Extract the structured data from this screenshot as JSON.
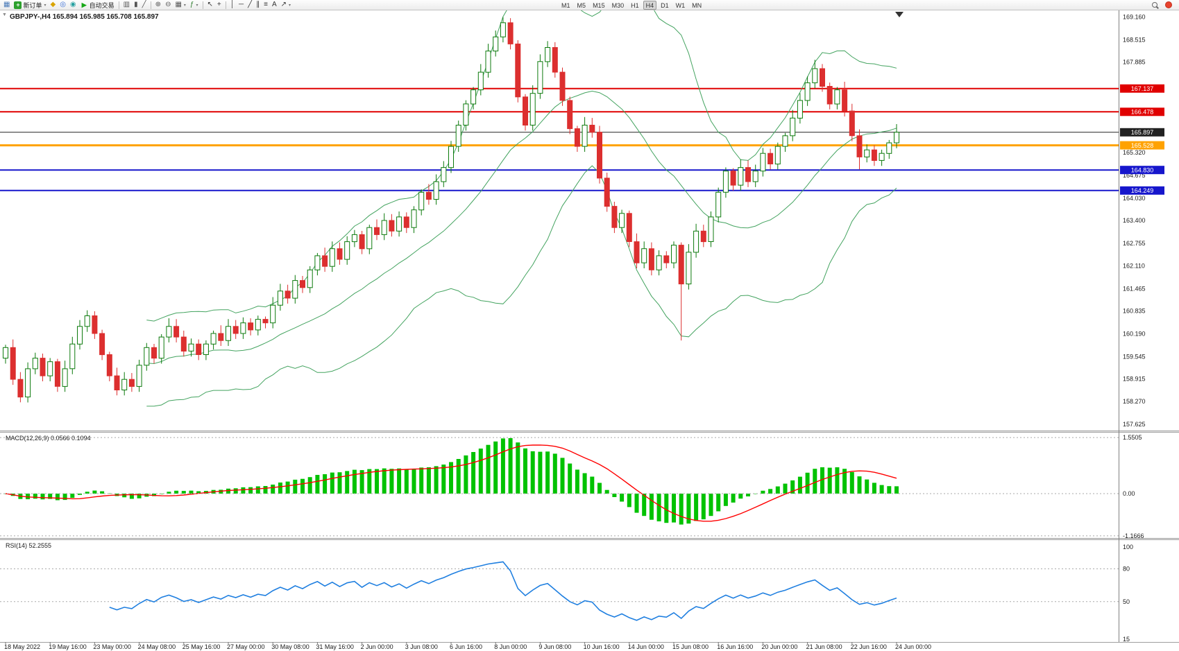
{
  "toolbar": {
    "items": [
      {
        "type": "icon",
        "name": "new-chart",
        "glyph": "▦",
        "color": "#4a7ab8"
      },
      {
        "type": "labeled",
        "name": "new-order",
        "label": "新订单",
        "icon_glyph": "+",
        "icon_bg": "#2ca02c",
        "dropdown": true
      },
      {
        "type": "icon",
        "name": "history-center",
        "glyph": "◆",
        "color": "#d9a400"
      },
      {
        "type": "icon",
        "name": "market-watch",
        "glyph": "◎",
        "color": "#3a6fd8"
      },
      {
        "type": "icon",
        "name": "data-window",
        "glyph": "◉",
        "color": "#26a0a0"
      },
      {
        "type": "labeled",
        "name": "autotrading",
        "label": "自动交易",
        "icon_glyph": "▶",
        "icon_color": "#18a818"
      },
      {
        "type": "sep"
      },
      {
        "type": "icon",
        "name": "bar-chart",
        "glyph": "▥",
        "color": "#555555"
      },
      {
        "type": "icon",
        "name": "candlestick-chart",
        "glyph": "▮",
        "color": "#555555"
      },
      {
        "type": "icon",
        "name": "line-chart",
        "glyph": "╱",
        "color": "#555555"
      },
      {
        "type": "sep"
      },
      {
        "type": "icon",
        "name": "zoom-in",
        "glyph": "⊕",
        "color": "#555555"
      },
      {
        "type": "icon",
        "name": "zoom-out",
        "glyph": "⊖",
        "color": "#555555"
      },
      {
        "type": "icon",
        "name": "tile-windows",
        "glyph": "▦",
        "color": "#555555",
        "dropdown": true
      },
      {
        "type": "icon",
        "name": "indicators",
        "glyph": "ƒ",
        "color": "#2d7d2d",
        "dropdown": true
      },
      {
        "type": "sep"
      },
      {
        "type": "icon",
        "name": "cursor",
        "glyph": "↖",
        "color": "#333333"
      },
      {
        "type": "icon",
        "name": "crosshair",
        "glyph": "+",
        "color": "#333333"
      },
      {
        "type": "sep"
      },
      {
        "type": "icon",
        "name": "vertical-line",
        "glyph": "│",
        "color": "#333333"
      },
      {
        "type": "icon",
        "name": "horizontal-line",
        "glyph": "─",
        "color": "#333333"
      },
      {
        "type": "icon",
        "name": "trendline",
        "glyph": "╱",
        "color": "#333333"
      },
      {
        "type": "icon",
        "name": "equidistant-channel",
        "glyph": "∥",
        "color": "#333333"
      },
      {
        "type": "icon",
        "name": "fibonacci",
        "glyph": "≡",
        "color": "#333333"
      },
      {
        "type": "icon",
        "name": "text-label",
        "glyph": "A",
        "color": "#333333"
      },
      {
        "type": "icon",
        "name": "arrow-objects",
        "glyph": "↗",
        "color": "#333333",
        "dropdown": true
      },
      {
        "type": "tf-group"
      },
      {
        "type": "spacer"
      },
      {
        "type": "search"
      },
      {
        "type": "notification"
      }
    ],
    "timeframes": [
      "M1",
      "M5",
      "M15",
      "M30",
      "H1",
      "H4",
      "D1",
      "W1",
      "MN"
    ],
    "active_timeframe": "H4"
  },
  "chart": {
    "title": "GBPJPY-,H4 165.894 165.985 165.708 165.897",
    "symbol": "GBPJPY-",
    "period": "H4",
    "ohlc": {
      "open": "165.894",
      "high": "165.985",
      "low": "165.708",
      "close": "165.897"
    },
    "levels": [
      {
        "price": 167.137,
        "label": "167.137",
        "color": "#e00000",
        "width": 2
      },
      {
        "price": 166.478,
        "label": "166.478",
        "color": "#e00000",
        "width": 2
      },
      {
        "price": 165.897,
        "label": "165.897",
        "color": "#222222",
        "width": 1
      },
      {
        "price": 165.528,
        "label": "165.528",
        "color": "#ffa200",
        "width": 3
      },
      {
        "price": 164.83,
        "label": "164.830",
        "color": "#1616cc",
        "width": 2
      },
      {
        "price": 164.249,
        "label": "164.249",
        "color": "#1616cc",
        "width": 2
      }
    ],
    "y_ticks": [
      169.16,
      168.515,
      167.885,
      165.32,
      164.675,
      164.03,
      163.4,
      162.755,
      162.11,
      161.465,
      160.835,
      160.19,
      159.545,
      158.915,
      158.27,
      157.625
    ]
  },
  "chart_data": {
    "type": "candlestick",
    "symbol": "GBPJPY-",
    "timeframe": "H4",
    "y_axis": {
      "price_top": 169.35,
      "price_bottom": 157.45
    },
    "first_open": 159.5,
    "closes": [
      159.8,
      158.9,
      158.4,
      159.2,
      159.5,
      159.0,
      159.4,
      158.7,
      159.2,
      159.9,
      160.4,
      160.7,
      160.2,
      159.6,
      159.0,
      158.6,
      158.9,
      158.7,
      159.3,
      159.8,
      159.5,
      160.1,
      160.4,
      160.1,
      159.7,
      159.9,
      159.6,
      159.9,
      160.2,
      160.0,
      160.4,
      160.2,
      160.5,
      160.3,
      160.6,
      160.5,
      161.0,
      161.4,
      161.2,
      161.7,
      161.5,
      162.0,
      162.4,
      162.1,
      162.6,
      162.3,
      162.8,
      163.0,
      162.6,
      163.2,
      163.0,
      163.4,
      163.1,
      163.5,
      163.2,
      163.7,
      164.2,
      164.0,
      164.5,
      164.9,
      165.5,
      166.1,
      166.7,
      167.1,
      167.6,
      168.2,
      168.6,
      169.0,
      168.4,
      166.9,
      166.1,
      167.0,
      167.9,
      168.3,
      167.6,
      166.8,
      166.0,
      165.5,
      166.1,
      165.9,
      164.6,
      163.8,
      163.2,
      163.6,
      162.8,
      162.2,
      162.6,
      162.0,
      162.4,
      162.2,
      162.7,
      161.6,
      162.5,
      163.1,
      162.8,
      163.5,
      164.2,
      164.8,
      164.4,
      164.9,
      164.5,
      164.8,
      165.3,
      165.0,
      165.5,
      165.8,
      166.3,
      166.8,
      167.3,
      167.7,
      167.2,
      166.7,
      167.1,
      166.5,
      165.8,
      165.2,
      165.4,
      165.1,
      165.3,
      165.6,
      165.9
    ],
    "wick_overrides": {
      "2": {
        "low": 158.25
      },
      "67": {
        "high": 169.16
      },
      "74": {
        "high": 168.45
      },
      "91": {
        "low": 160.0
      },
      "109": {
        "high": 167.95
      },
      "115": {
        "low": 164.85
      }
    },
    "style": {
      "bull_fill": "#ffffff",
      "bull_border": "#0c7a0c",
      "bear_color": "#dc2f2f",
      "axis_line": "#808080",
      "dash_color": "#a8a8a8",
      "text_color": "#1a1a1a"
    },
    "x_labels": [
      {
        "i": 0,
        "label": "18 May 2022"
      },
      {
        "i": 6,
        "label": "19 May 16:00"
      },
      {
        "i": 12,
        "label": "23 May 00:00"
      },
      {
        "i": 18,
        "label": "24 May 08:00"
      },
      {
        "i": 24,
        "label": "25 May 16:00"
      },
      {
        "i": 30,
        "label": "27 May 00:00"
      },
      {
        "i": 36,
        "label": "30 May 08:00"
      },
      {
        "i": 42,
        "label": "31 May 16:00"
      },
      {
        "i": 48,
        "label": "2 Jun 00:00"
      },
      {
        "i": 54,
        "label": "3 Jun 08:00"
      },
      {
        "i": 60,
        "label": "6 Jun 16:00"
      },
      {
        "i": 66,
        "label": "8 Jun 00:00"
      },
      {
        "i": 72,
        "label": "9 Jun 08:00"
      },
      {
        "i": 78,
        "label": "10 Jun 16:00"
      },
      {
        "i": 84,
        "label": "14 Jun 00:00"
      },
      {
        "i": 90,
        "label": "15 Jun 08:00"
      },
      {
        "i": 96,
        "label": "16 Jun 16:00"
      },
      {
        "i": 102,
        "label": "20 Jun 00:00"
      },
      {
        "i": 108,
        "label": "21 Jun 08:00"
      },
      {
        "i": 114,
        "label": "22 Jun 16:00"
      },
      {
        "i": 120,
        "label": "24 Jun 00:00"
      }
    ],
    "indicators": {
      "bollinger": {
        "period": 20,
        "deviation": 2,
        "color": "#43a35f"
      },
      "macd": {
        "label": "MACD(12,26,9) 0.0566 0.1094",
        "fast": 12,
        "slow": 26,
        "signal_period": 9,
        "main_value": 0.0566,
        "signal_value": 0.1094,
        "hist_color": "#00c200",
        "signal_color": "#ff0000",
        "scale_ticks": [
          {
            "value": 1.5505,
            "label": "1.5505"
          },
          {
            "value": 0,
            "label": "0.00"
          },
          {
            "value": -1.1666,
            "label": "-1.1666"
          }
        ]
      },
      "rsi": {
        "label": "RSI(14) 52.2555",
        "period": 14,
        "value": 52.2555,
        "color": "#1f7fe0",
        "scale_ticks": [
          {
            "value": 100,
            "label": "100"
          },
          {
            "value": 80,
            "label": "80"
          },
          {
            "value": 50,
            "label": "50"
          },
          {
            "value": 15,
            "label": "15"
          }
        ],
        "levels": [
          80,
          50
        ]
      }
    }
  }
}
